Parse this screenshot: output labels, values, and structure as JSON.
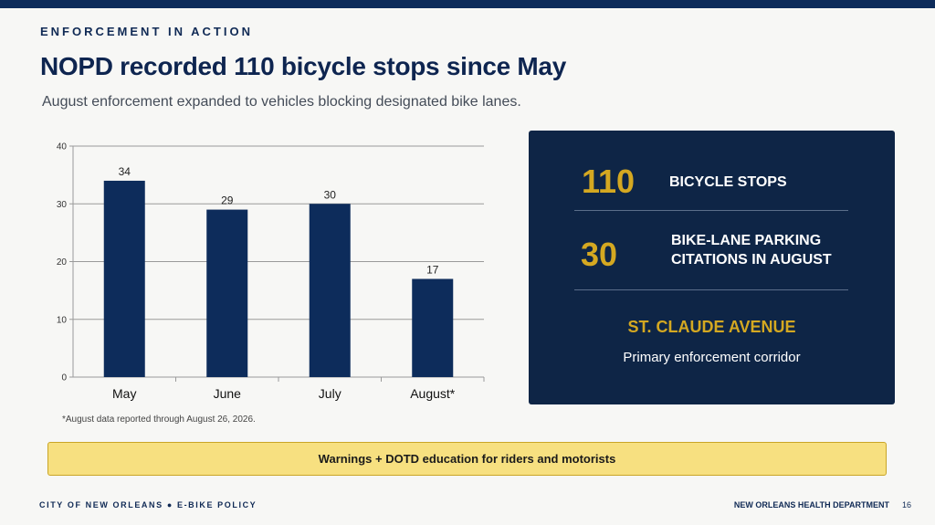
{
  "header": {
    "kicker": "ENFORCEMENT IN ACTION",
    "title": "NOPD recorded 110 bicycle stops since May",
    "subtitle": "August enforcement expanded to vehicles blocking designated bike lanes."
  },
  "chart_data": {
    "type": "bar",
    "categories": [
      "May",
      "June",
      "July",
      "August*"
    ],
    "values": [
      34,
      29,
      30,
      17
    ],
    "data_labels": [
      "34",
      "29",
      "30",
      "17"
    ],
    "yticks": [
      "0",
      "10",
      "20",
      "30",
      "40"
    ],
    "ylim": [
      0,
      40
    ],
    "grid": true,
    "bar_color": "#0d2c5b",
    "title": "",
    "xlabel": "",
    "ylabel": ""
  },
  "footnote": "*August data reported through August 26, 2026.",
  "panel": {
    "stat1_value": "110",
    "stat1_label": "BICYCLE STOPS",
    "stat2_value": "30",
    "stat2_label_line1": "BIKE-LANE PARKING",
    "stat2_label_line2": "CITATIONS IN AUGUST",
    "corridor_title": "ST. CLAUDE AVENUE",
    "corridor_sub": "Primary enforcement corridor"
  },
  "banner": "Warnings + DOTD education for riders and motorists",
  "footer": {
    "left": "CITY OF NEW ORLEANS  ●  E-BIKE POLICY",
    "right": "NEW ORLEANS HEALTH DEPARTMENT",
    "page": "16"
  },
  "colors": {
    "accent_navy": "#0d2c5b",
    "accent_gold": "#d4a821",
    "banner_yellow": "#f7e080"
  }
}
